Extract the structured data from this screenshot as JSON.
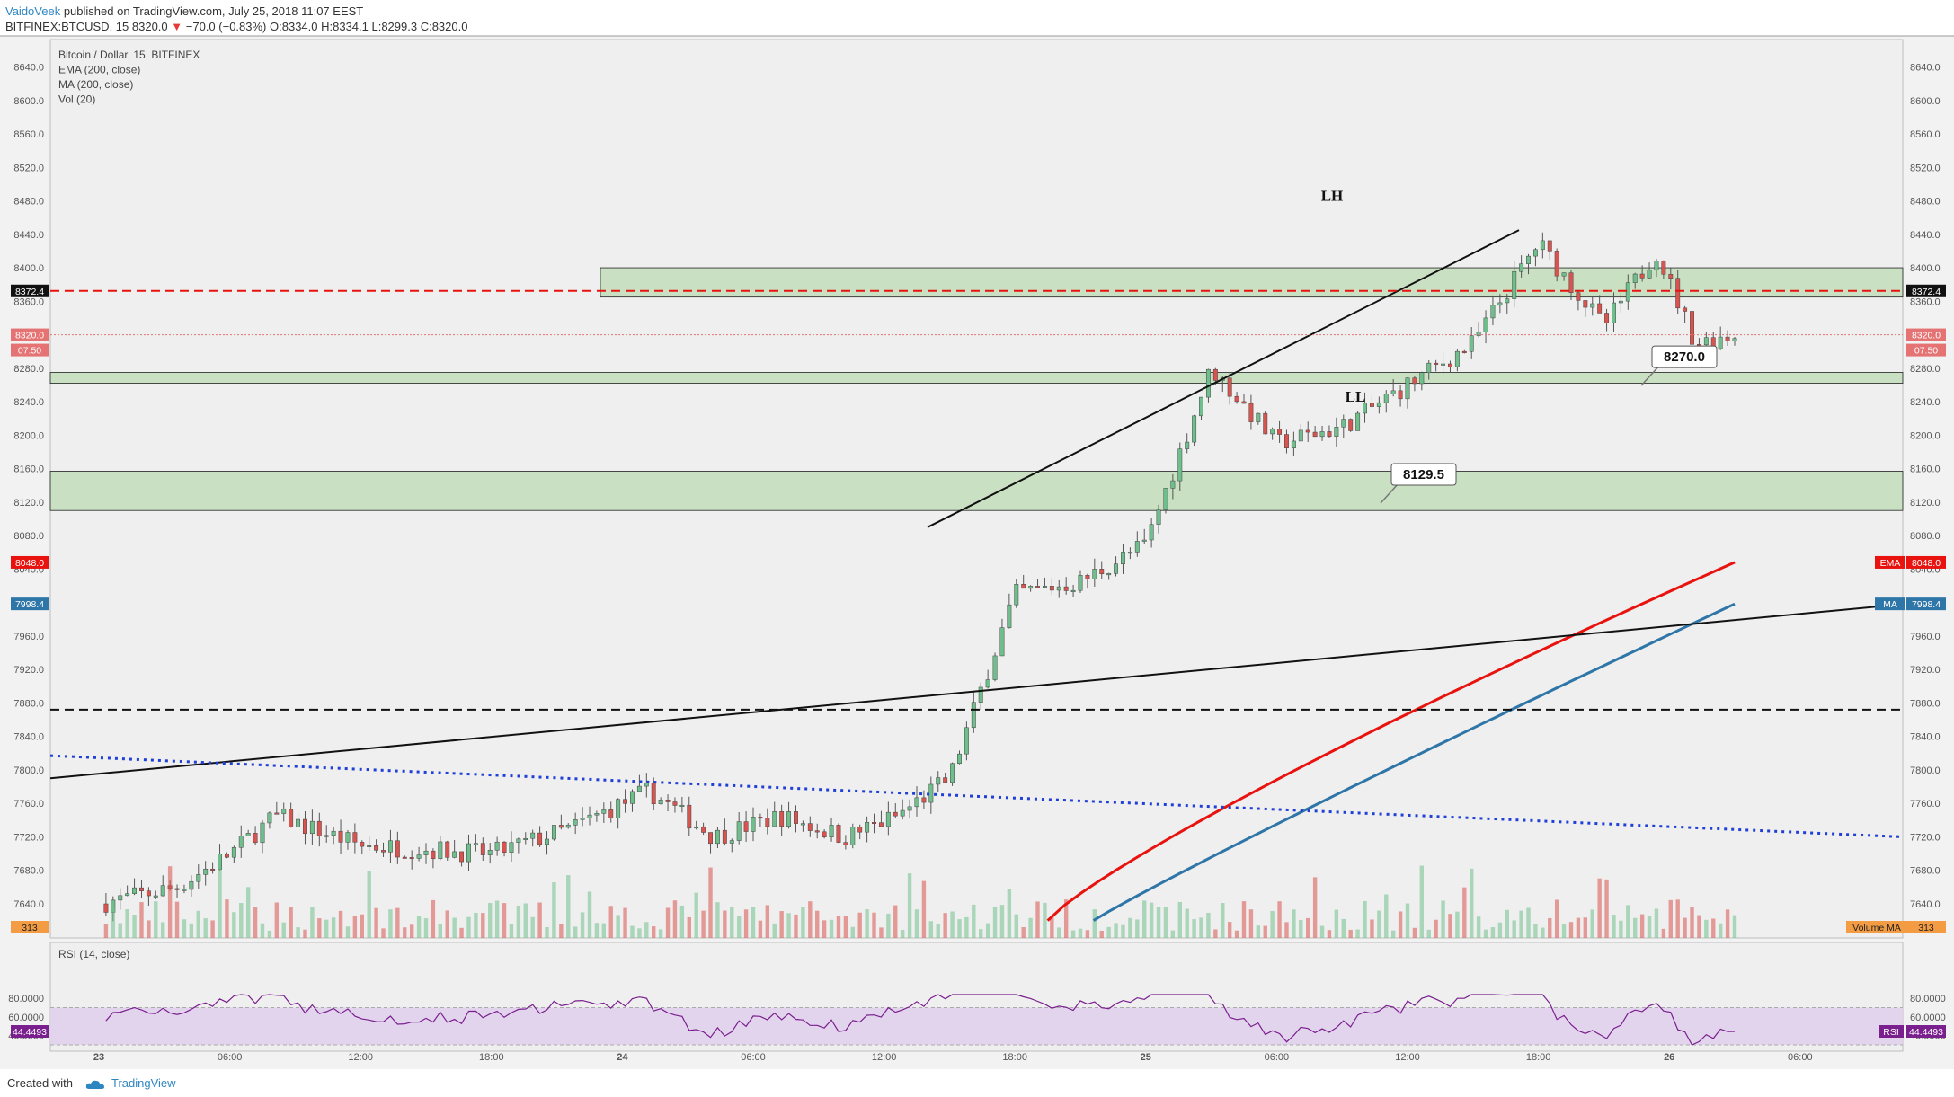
{
  "header": {
    "author": "VaidoVeek",
    "published_text": "published on TradingView.com, July 25, 2018 11:07 EEST",
    "symbol_line": "BITFINEX:BTCUSD, 15",
    "last_price": "8320.0",
    "change": "−70.0 (−0.83%)",
    "ohlc": "O:8334.0 H:8334.1 L:8299.3 C:8320.0"
  },
  "legend": [
    "Bitcoin / Dollar, 15, BITFINEX",
    "EMA (200, close)",
    "MA (200, close)",
    "Vol (20)"
  ],
  "rsi_label": "RSI (14, close)",
  "footer": {
    "created_with": "Created with",
    "brand": "TradingView"
  },
  "colors": {
    "up": "#6fbf8c",
    "down": "#d9534f",
    "ema": "#e8130e",
    "ma": "#2e75a8",
    "zone": "#a9d39c",
    "rsi_band": "#e1d0ec",
    "rsi_line": "#7a1f8e"
  },
  "chart_data": {
    "type": "candlestick",
    "symbol": "BITFINEX:BTCUSD",
    "timeframe": "15",
    "y_range": [
      7620,
      8660
    ],
    "y_ticks": [
      7640,
      7680,
      7720,
      7760,
      7800,
      7840,
      7880,
      7920,
      7960,
      8000,
      8040,
      8080,
      8120,
      8160,
      8200,
      8240,
      8280,
      8320,
      8360,
      8400,
      8440,
      8480,
      8520,
      8560,
      8600,
      8640
    ],
    "x_labels": [
      "23",
      "06:00",
      "12:00",
      "18:00",
      "24",
      "06:00",
      "12:00",
      "18:00",
      "25",
      "06:00",
      "12:00",
      "18:00",
      "26",
      "06:00"
    ],
    "price_path": [
      {
        "t": 0.0,
        "p": 7640
      },
      {
        "t": 0.6,
        "p": 7660
      },
      {
        "t": 1.0,
        "p": 7700
      },
      {
        "t": 1.35,
        "p": 7745
      },
      {
        "t": 2.0,
        "p": 7710
      },
      {
        "t": 3.0,
        "p": 7700
      },
      {
        "t": 3.6,
        "p": 7730
      },
      {
        "t": 4.2,
        "p": 7775
      },
      {
        "t": 4.7,
        "p": 7720
      },
      {
        "t": 5.2,
        "p": 7745
      },
      {
        "t": 5.7,
        "p": 7720
      },
      {
        "t": 6.1,
        "p": 7745
      },
      {
        "t": 6.5,
        "p": 7790
      },
      {
        "t": 7.0,
        "p": 8010
      },
      {
        "t": 7.5,
        "p": 8025
      },
      {
        "t": 8.0,
        "p": 8070
      },
      {
        "t": 8.5,
        "p": 8280
      },
      {
        "t": 9.0,
        "p": 8190
      },
      {
        "t": 9.5,
        "p": 8210
      },
      {
        "t": 10.0,
        "p": 8260
      },
      {
        "t": 10.5,
        "p": 8310
      },
      {
        "t": 11.0,
        "p": 8430
      },
      {
        "t": 11.5,
        "p": 8330
      },
      {
        "t": 11.9,
        "p": 8420
      },
      {
        "t": 12.2,
        "p": 8310
      },
      {
        "t": 12.5,
        "p": 8320
      }
    ],
    "last_close": 8320.0,
    "ema_last": 8048.0,
    "ma_last": 7998.4,
    "volume_last": 313,
    "rsi_last": 44.4493,
    "rsi_axis_labels": [
      "80.0000",
      "60.0000",
      "40.0000"
    ],
    "rsi_band": [
      30,
      70
    ],
    "levels": {
      "red_dashed_resistance": 8372.4,
      "black_dashed": 7872
    },
    "zones": [
      {
        "from": 8365,
        "to": 8400
      },
      {
        "from": 8262,
        "to": 8275
      },
      {
        "from": 8110,
        "to": 8157
      }
    ],
    "callouts": [
      {
        "text": "8270.0",
        "price": 8270
      },
      {
        "text": "8129.5",
        "price": 8129.5
      }
    ],
    "text_annotations": [
      "LH",
      "LL"
    ],
    "axis_tags": {
      "resistance": "8372.4",
      "price": "8320.0",
      "countdown": "07:50",
      "ema": "8048.0",
      "ma": "7998.4",
      "ema_label": "EMA",
      "ma_label": "MA",
      "volume_ma_label": "Volume MA",
      "volume": "313",
      "rsi_label": "RSI",
      "rsi": "44.4493"
    }
  }
}
